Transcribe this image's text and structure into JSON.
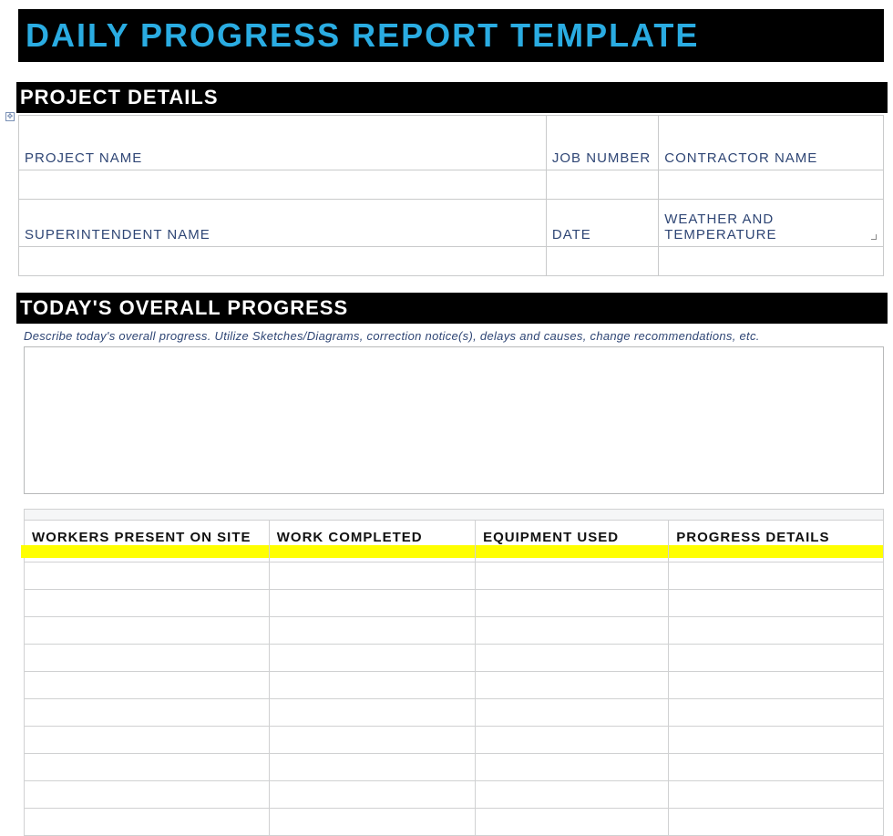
{
  "title": "DAILY PROGRESS REPORT TEMPLATE",
  "colors": {
    "title_text": "#2aace2",
    "title_bg": "#000000",
    "section_bg": "#000000",
    "section_text": "#ffffff",
    "field_label": "#2f4675",
    "cell_border": "#c9cacb",
    "highlight": "#ffff00",
    "table_border": "#d0d1d2"
  },
  "sections": {
    "project_details": {
      "heading": "PROJECT DETAILS",
      "row1": {
        "project_name": "PROJECT NAME",
        "job_number": "JOB NUMBER",
        "contractor_name": "CONTRACTOR NAME"
      },
      "row2": {
        "superintendent_name": "SUPERINTENDENT NAME",
        "date": "DATE",
        "weather": "WEATHER AND TEMPERATURE"
      }
    },
    "overall_progress": {
      "heading": "TODAY'S OVERALL PROGRESS",
      "helper": "Describe today's overall progress. Utilize Sketches/Diagrams, correction notice(s), delays and causes, change recommendations, etc."
    },
    "work_table": {
      "columns": [
        "WORKERS PRESENT ON SITE",
        "WORK COMPLETED",
        "EQUIPMENT USED",
        "PROGRESS DETAILS"
      ],
      "row_count": 10
    }
  }
}
